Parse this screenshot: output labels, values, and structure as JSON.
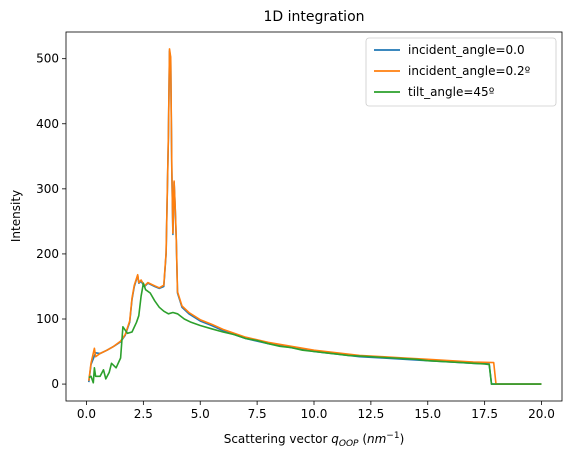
{
  "chart_data": {
    "type": "line",
    "title": "1D integration",
    "xlabel_prefix": "Scattering vector ",
    "xlabel_var": "q",
    "xlabel_sub": "OOP",
    "xlabel_unit_open": " (",
    "xlabel_unit_base": "nm",
    "xlabel_unit_exp": "−1",
    "xlabel_unit_close": ")",
    "ylabel": "Intensity",
    "xlim": [
      -0.9,
      20.9
    ],
    "ylim": [
      -26,
      541
    ],
    "xticks": [
      0.0,
      2.5,
      5.0,
      7.5,
      10.0,
      12.5,
      15.0,
      17.5,
      20.0
    ],
    "xtick_labels": [
      "0.0",
      "2.5",
      "5.0",
      "7.5",
      "10.0",
      "12.5",
      "15.0",
      "17.5",
      "20.0"
    ],
    "yticks": [
      0,
      100,
      200,
      300,
      400,
      500
    ],
    "ytick_labels": [
      "0",
      "100",
      "200",
      "300",
      "400",
      "500"
    ],
    "grid": false,
    "legend_position": "top-right",
    "series": [
      {
        "name": "incident_angle=0.0",
        "color": "#1f77b4",
        "points": [
          [
            0.1,
            3
          ],
          [
            0.2,
            30
          ],
          [
            0.4,
            48
          ],
          [
            0.6,
            47
          ],
          [
            0.9,
            52
          ],
          [
            1.2,
            58
          ],
          [
            1.5,
            65
          ],
          [
            1.7,
            75
          ],
          [
            1.9,
            95
          ],
          [
            2.0,
            130
          ],
          [
            2.1,
            150
          ],
          [
            2.25,
            167
          ],
          [
            2.3,
            155
          ],
          [
            2.4,
            158
          ],
          [
            2.55,
            150
          ],
          [
            2.7,
            155
          ],
          [
            3.0,
            150
          ],
          [
            3.2,
            147
          ],
          [
            3.4,
            150
          ],
          [
            3.5,
            200
          ],
          [
            3.6,
            380
          ],
          [
            3.65,
            512
          ],
          [
            3.7,
            500
          ],
          [
            3.75,
            330
          ],
          [
            3.8,
            230
          ],
          [
            3.85,
            310
          ],
          [
            3.9,
            270
          ],
          [
            3.95,
            220
          ],
          [
            4.0,
            140
          ],
          [
            4.2,
            118
          ],
          [
            4.5,
            108
          ],
          [
            5.0,
            97
          ],
          [
            5.5,
            90
          ],
          [
            6.0,
            82
          ],
          [
            7.0,
            70
          ],
          [
            8.0,
            62
          ],
          [
            9.0,
            56
          ],
          [
            10.0,
            50
          ],
          [
            11.0,
            46
          ],
          [
            12.0,
            42
          ],
          [
            13.0,
            40
          ],
          [
            14.0,
            38
          ],
          [
            15.0,
            36
          ],
          [
            16.0,
            34
          ],
          [
            17.0,
            32
          ],
          [
            17.7,
            31
          ],
          [
            17.8,
            0
          ],
          [
            18.0,
            0
          ],
          [
            20.0,
            0
          ]
        ]
      },
      {
        "name": "incident_angle=0.2º",
        "color": "#ff7f0e",
        "points": [
          [
            0.1,
            5
          ],
          [
            0.2,
            32
          ],
          [
            0.35,
            55
          ],
          [
            0.4,
            42
          ],
          [
            0.6,
            47
          ],
          [
            0.9,
            52
          ],
          [
            1.2,
            58
          ],
          [
            1.5,
            66
          ],
          [
            1.7,
            76
          ],
          [
            1.9,
            97
          ],
          [
            2.0,
            132
          ],
          [
            2.1,
            152
          ],
          [
            2.25,
            168
          ],
          [
            2.3,
            156
          ],
          [
            2.4,
            160
          ],
          [
            2.55,
            151
          ],
          [
            2.7,
            156
          ],
          [
            3.0,
            151
          ],
          [
            3.2,
            148
          ],
          [
            3.4,
            152
          ],
          [
            3.5,
            202
          ],
          [
            3.6,
            382
          ],
          [
            3.65,
            515
          ],
          [
            3.7,
            502
          ],
          [
            3.75,
            332
          ],
          [
            3.8,
            232
          ],
          [
            3.85,
            312
          ],
          [
            3.9,
            272
          ],
          [
            3.95,
            222
          ],
          [
            4.0,
            142
          ],
          [
            4.2,
            120
          ],
          [
            4.5,
            110
          ],
          [
            5.0,
            99
          ],
          [
            5.5,
            92
          ],
          [
            6.0,
            84
          ],
          [
            7.0,
            72
          ],
          [
            8.0,
            64
          ],
          [
            9.0,
            58
          ],
          [
            10.0,
            52
          ],
          [
            11.0,
            48
          ],
          [
            12.0,
            44
          ],
          [
            13.0,
            42
          ],
          [
            14.0,
            40
          ],
          [
            15.0,
            38
          ],
          [
            16.0,
            36
          ],
          [
            17.0,
            34
          ],
          [
            17.9,
            33
          ],
          [
            18.0,
            0
          ],
          [
            20.0,
            0
          ]
        ]
      },
      {
        "name": "tilt_angle=45º",
        "color": "#2ca02c",
        "points": [
          [
            0.1,
            10
          ],
          [
            0.2,
            12
          ],
          [
            0.3,
            2
          ],
          [
            0.35,
            25
          ],
          [
            0.4,
            12
          ],
          [
            0.6,
            12
          ],
          [
            0.75,
            22
          ],
          [
            0.85,
            8
          ],
          [
            1.0,
            18
          ],
          [
            1.1,
            32
          ],
          [
            1.3,
            25
          ],
          [
            1.5,
            40
          ],
          [
            1.6,
            88
          ],
          [
            1.8,
            78
          ],
          [
            2.0,
            80
          ],
          [
            2.2,
            95
          ],
          [
            2.3,
            105
          ],
          [
            2.4,
            135
          ],
          [
            2.5,
            155
          ],
          [
            2.6,
            145
          ],
          [
            2.8,
            140
          ],
          [
            3.0,
            128
          ],
          [
            3.2,
            118
          ],
          [
            3.4,
            112
          ],
          [
            3.6,
            108
          ],
          [
            3.8,
            110
          ],
          [
            4.0,
            108
          ],
          [
            4.3,
            100
          ],
          [
            4.6,
            95
          ],
          [
            5.0,
            90
          ],
          [
            5.5,
            85
          ],
          [
            6.0,
            80
          ],
          [
            6.5,
            76
          ],
          [
            7.0,
            70
          ],
          [
            7.5,
            67
          ],
          [
            8.0,
            62
          ],
          [
            8.5,
            58
          ],
          [
            9.0,
            56
          ],
          [
            9.5,
            52
          ],
          [
            10.0,
            50
          ],
          [
            10.5,
            48
          ],
          [
            11.0,
            46
          ],
          [
            11.5,
            44
          ],
          [
            12.0,
            43
          ],
          [
            12.5,
            42
          ],
          [
            13.0,
            41
          ],
          [
            13.5,
            40
          ],
          [
            14.0,
            39
          ],
          [
            14.5,
            38
          ],
          [
            15.0,
            36
          ],
          [
            15.5,
            35
          ],
          [
            16.0,
            34
          ],
          [
            16.5,
            33
          ],
          [
            17.0,
            32
          ],
          [
            17.5,
            31
          ],
          [
            17.7,
            30
          ],
          [
            17.8,
            0
          ],
          [
            18.0,
            0
          ],
          [
            20.0,
            0
          ]
        ]
      }
    ]
  }
}
